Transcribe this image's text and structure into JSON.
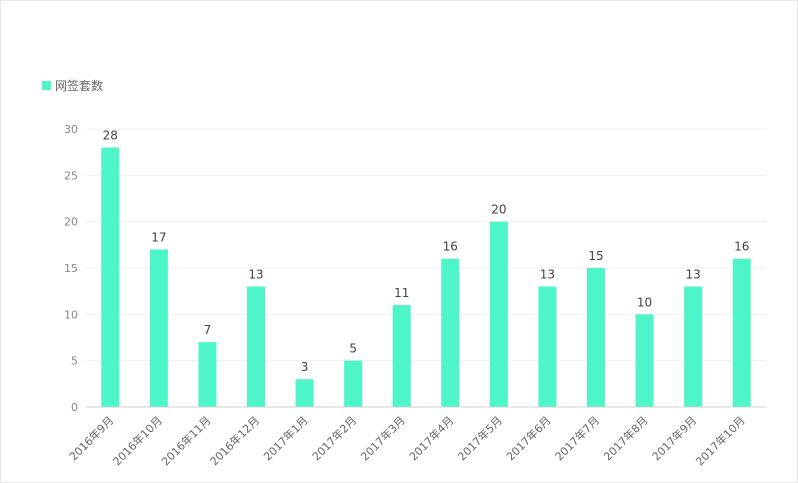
{
  "colors": {
    "bar": "#4ef5c9",
    "grid": "#efefef",
    "axis": "#cfcfcf"
  },
  "legend": {
    "label": "网签套数",
    "icon": "square-icon"
  },
  "chart_data": {
    "type": "bar",
    "categories": [
      "2016年9月",
      "2016年10月",
      "2016年11月",
      "2016年12月",
      "2017年1月",
      "2017年2月",
      "2017年3月",
      "2017年4月",
      "2017年5月",
      "2017年6月",
      "2017年7月",
      "2017年8月",
      "2017年9月",
      "2017年10月"
    ],
    "series": [
      {
        "name": "网签套数",
        "values": [
          28,
          17,
          7,
          13,
          3,
          5,
          11,
          16,
          20,
          13,
          15,
          10,
          13,
          16
        ]
      }
    ],
    "ylim": [
      0,
      30
    ],
    "yticks": [
      0,
      5,
      10,
      15,
      20,
      25,
      30
    ],
    "grid": true,
    "legend_position": "top-left",
    "title": "",
    "xlabel": "",
    "ylabel": ""
  }
}
